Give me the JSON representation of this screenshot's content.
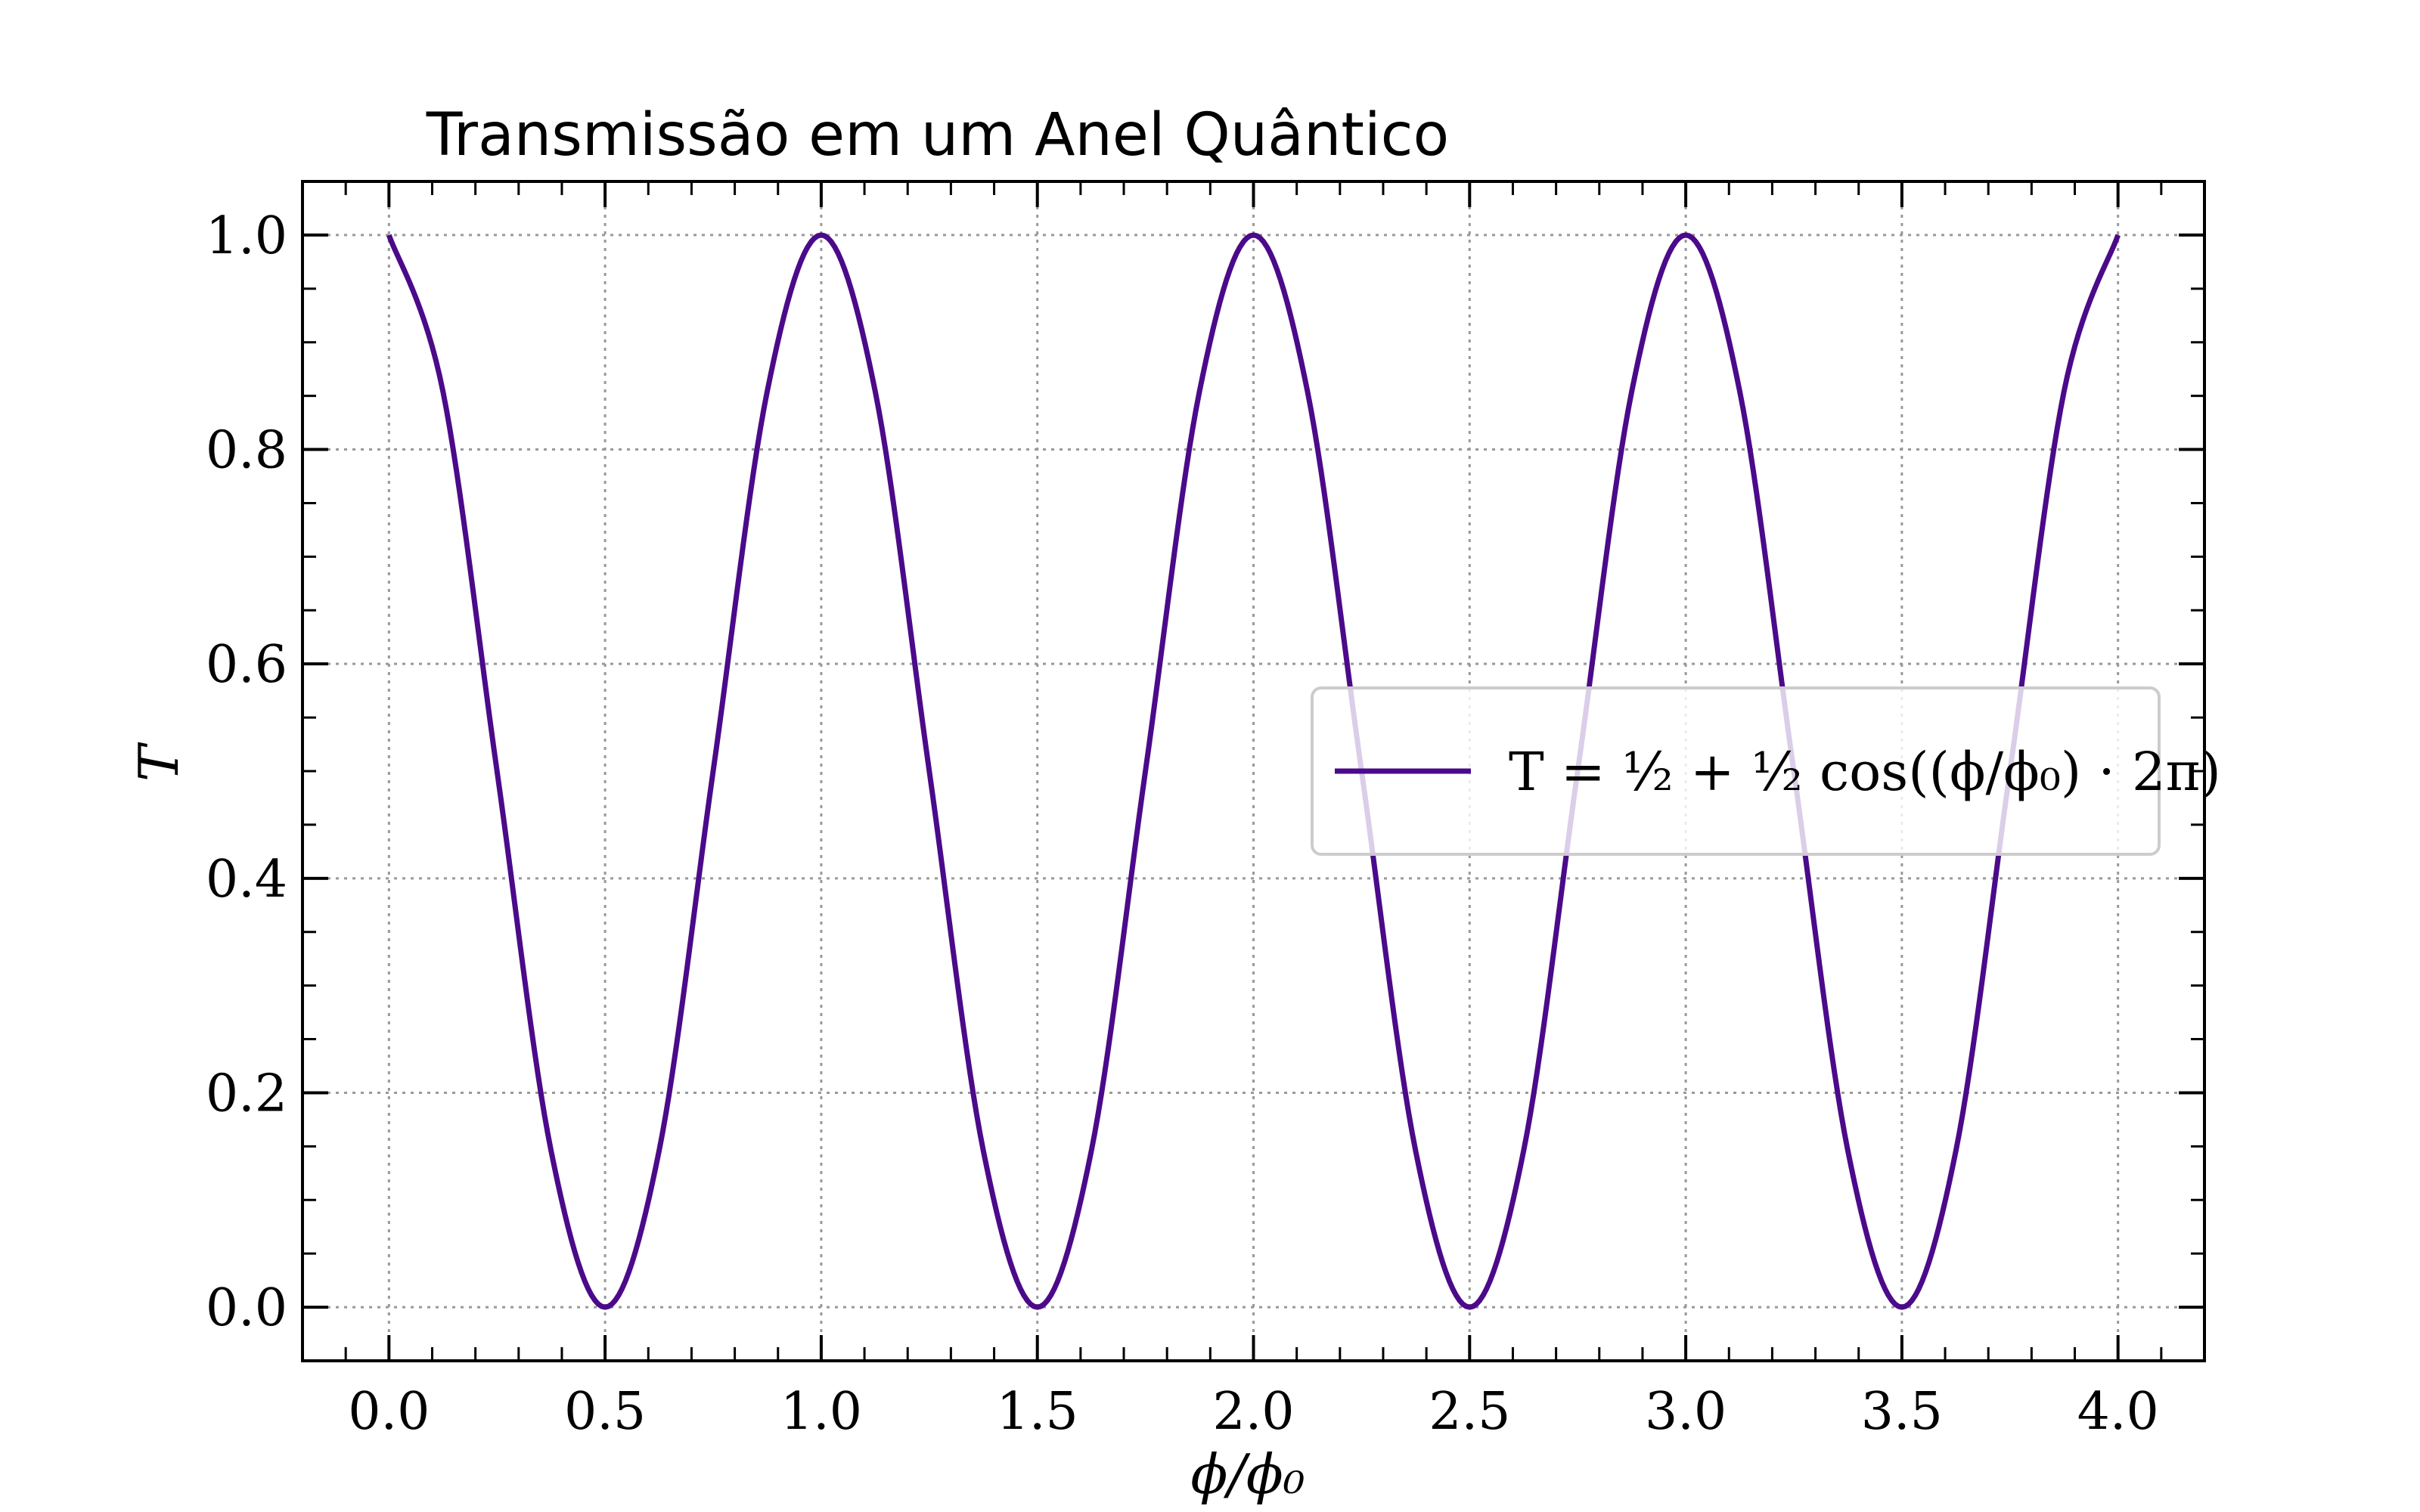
{
  "chart_data": {
    "type": "line",
    "title": "Transmissão em um Anel Quântico",
    "xlabel": "ϕ/ϕ₀",
    "ylabel": "T",
    "xlim": [
      -0.2,
      4.2
    ],
    "ylim": [
      -0.05,
      1.05
    ],
    "xticks": [
      0.0,
      0.5,
      1.0,
      1.5,
      2.0,
      2.5,
      3.0,
      3.5,
      4.0
    ],
    "xtick_labels": [
      "0.0",
      "0.5",
      "1.0",
      "1.5",
      "2.0",
      "2.5",
      "3.0",
      "3.5",
      "4.0"
    ],
    "yticks": [
      0.0,
      0.2,
      0.4,
      0.6,
      0.8,
      1.0
    ],
    "ytick_labels": [
      "0.0",
      "0.2",
      "0.4",
      "0.6",
      "0.8",
      "1.0"
    ],
    "grid": true,
    "legend_position": "center-right",
    "series": [
      {
        "name": "T = ½ + ½ cos((ϕ/ϕ₀) · 2π)",
        "color": "#4b0a8a",
        "x": [
          0.0,
          0.125,
          0.25,
          0.375,
          0.5,
          0.625,
          0.75,
          0.875,
          1.0,
          1.125,
          1.25,
          1.375,
          1.5,
          1.625,
          1.75,
          1.875,
          2.0,
          2.125,
          2.25,
          2.375,
          2.5,
          2.625,
          2.75,
          2.875,
          3.0,
          3.125,
          3.25,
          3.375,
          3.5,
          3.625,
          3.75,
          3.875,
          4.0
        ],
        "y": [
          1.0,
          0.854,
          0.5,
          0.146,
          0.0,
          0.146,
          0.5,
          0.854,
          1.0,
          0.854,
          0.5,
          0.146,
          0.0,
          0.146,
          0.5,
          0.854,
          1.0,
          0.854,
          0.5,
          0.146,
          0.0,
          0.146,
          0.5,
          0.854,
          1.0,
          0.854,
          0.5,
          0.146,
          0.0,
          0.146,
          0.5,
          0.854,
          1.0
        ]
      }
    ]
  }
}
